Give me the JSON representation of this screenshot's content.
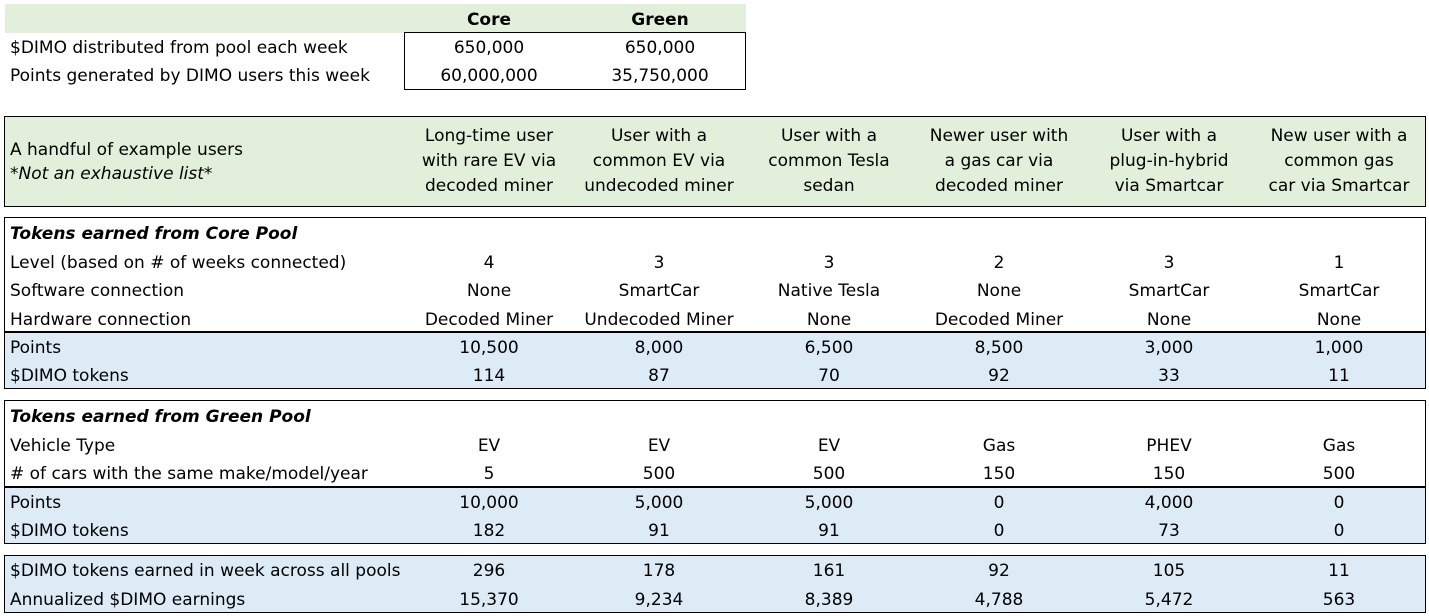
{
  "summary": {
    "col_core": "Core",
    "col_green": "Green",
    "rows": [
      {
        "label": "$DIMO distributed from pool each week",
        "core": "650,000",
        "green": "650,000"
      },
      {
        "label": "Points generated by DIMO users this week",
        "core": "60,000,000",
        "green": "35,750,000"
      }
    ]
  },
  "users": {
    "label_line1": "A handful of example users",
    "label_line2": "*Not an exhaustive list*",
    "columns": [
      {
        "l1": "Long-time user",
        "l2": "with rare EV via",
        "l3": "decoded miner"
      },
      {
        "l1": "User with a",
        "l2": "common EV via",
        "l3": "undecoded miner"
      },
      {
        "l1": "User with a",
        "l2": "common Tesla",
        "l3": "sedan"
      },
      {
        "l1": "Newer user with",
        "l2": "a gas car via",
        "l3": "decoded miner"
      },
      {
        "l1": "User with a",
        "l2": "plug-in-hybrid",
        "l3": "via Smartcar"
      },
      {
        "l1": "New user with a",
        "l2": "common gas",
        "l3": "car via Smartcar"
      }
    ]
  },
  "core_pool": {
    "title": "Tokens earned from Core Pool",
    "rows": [
      {
        "label": "Level (based on # of weeks connected)",
        "values": [
          "4",
          "3",
          "3",
          "2",
          "3",
          "1"
        ]
      },
      {
        "label": "Software connection",
        "values": [
          "None",
          "SmartCar",
          "Native Tesla",
          "None",
          "SmartCar",
          "SmartCar"
        ]
      },
      {
        "label": "Hardware connection",
        "values": [
          "Decoded Miner",
          "Undecoded Miner",
          "None",
          "Decoded Miner",
          "None",
          "None"
        ]
      }
    ],
    "result_rows": [
      {
        "label": "Points",
        "values": [
          "10,500",
          "8,000",
          "6,500",
          "8,500",
          "3,000",
          "1,000"
        ]
      },
      {
        "label": "$DIMO tokens",
        "values": [
          "114",
          "87",
          "70",
          "92",
          "33",
          "11"
        ]
      }
    ]
  },
  "green_pool": {
    "title": "Tokens earned from Green Pool",
    "rows": [
      {
        "label": "Vehicle Type",
        "values": [
          "EV",
          "EV",
          "EV",
          "Gas",
          "PHEV",
          "Gas"
        ]
      },
      {
        "label": "# of cars with the same make/model/year",
        "values": [
          "5",
          "500",
          "500",
          "150",
          "150",
          "500"
        ]
      }
    ],
    "result_rows": [
      {
        "label": "Points",
        "values": [
          "10,000",
          "5,000",
          "5,000",
          "0",
          "4,000",
          "0"
        ]
      },
      {
        "label": "$DIMO tokens",
        "values": [
          "182",
          "91",
          "91",
          "0",
          "73",
          "0"
        ]
      }
    ]
  },
  "totals": {
    "rows": [
      {
        "label": "$DIMO tokens earned in week across all pools",
        "values": [
          "296",
          "178",
          "161",
          "92",
          "105",
          "11"
        ]
      },
      {
        "label": "Annualized $DIMO earnings",
        "values": [
          "15,370",
          "9,234",
          "8,389",
          "4,788",
          "5,472",
          "563"
        ]
      }
    ]
  },
  "colors": {
    "header_green": "#e2efda",
    "result_blue": "#ddebf7",
    "border": "#000000"
  }
}
